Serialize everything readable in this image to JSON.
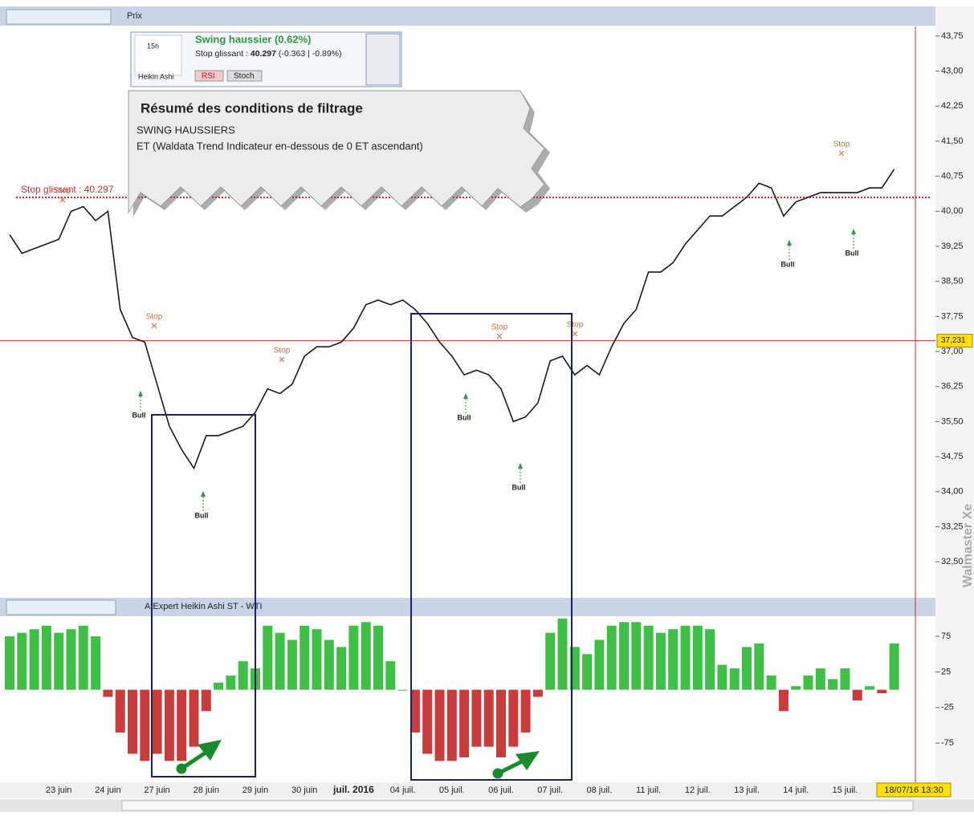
{
  "toolbar": {
    "title": "Prix"
  },
  "widget": {
    "signal": "Swing haussier (0.62%)",
    "stop_prefix": "Stop glissant : ",
    "stop_value": "40.297",
    "stop_change": " (-0.363 | -0.89%)",
    "timeframe": "15h",
    "style": "Heikin Ashi",
    "rsi": "RSI",
    "stoch": "Stoch"
  },
  "popup": {
    "title": "Résumé des conditions de filtrage",
    "line1": "SWING HAUSSIERS",
    "line2": "ET  (Waldata Trend Indicateur en-dessous de 0 ET ascendant)"
  },
  "annotations": {
    "stop": "Stop",
    "bull": "Bull"
  },
  "indicator_title": "AtExpert Heikin Ashi ST - WTI",
  "cursor_date": "18/07/16 13:30",
  "watermark": "Walmaster Xe",
  "chart_data": [
    {
      "type": "line",
      "color": "#1a1a1a",
      "categories": [
        null,
        null,
        null,
        null,
        "23 juin",
        null,
        null,
        null,
        "24 juin",
        null,
        null,
        null,
        "27 juin",
        null,
        null,
        null,
        "28 juin",
        null,
        null,
        null,
        "29 juin",
        null,
        null,
        null,
        "30 juin",
        null,
        null,
        null,
        "juil. 2016",
        null,
        null,
        null,
        "04 juil.",
        null,
        null,
        null,
        "05 juil.",
        null,
        null,
        null,
        "06 juil.",
        null,
        null,
        null,
        "07 juil.",
        null,
        null,
        null,
        "08 juil.",
        null,
        null,
        null,
        "11 juil.",
        null,
        null,
        null,
        "12 juil.",
        null,
        null,
        null,
        "13 juil.",
        null,
        null,
        null,
        "14 juil.",
        null,
        null,
        null,
        "15 juil.",
        null,
        null,
        null,
        null
      ],
      "values": [
        39.5,
        39.1,
        39.2,
        39.3,
        39.4,
        40.0,
        40.1,
        39.8,
        40.0,
        37.9,
        37.3,
        37.2,
        36.3,
        35.4,
        34.9,
        34.5,
        35.2,
        35.2,
        35.3,
        35.4,
        35.7,
        36.2,
        36.1,
        36.3,
        36.9,
        37.1,
        37.1,
        37.2,
        37.5,
        38.0,
        38.1,
        38.0,
        38.1,
        37.9,
        37.6,
        37.2,
        36.9,
        36.5,
        36.6,
        36.5,
        36.2,
        35.5,
        35.6,
        35.9,
        36.8,
        36.9,
        36.5,
        36.7,
        36.5,
        37.1,
        37.6,
        37.9,
        38.7,
        38.7,
        38.9,
        39.3,
        39.6,
        39.9,
        39.9,
        40.1,
        40.3,
        40.6,
        40.5,
        39.9,
        40.2,
        40.3,
        40.4,
        40.4,
        40.4,
        40.4,
        40.5,
        40.5,
        40.9
      ],
      "ylim": [
        31.73,
        43.92
      ],
      "yticks": [
        {
          "value": 43.75,
          "label": "43,75"
        },
        {
          "value": 43.0,
          "label": "43,00"
        },
        {
          "value": 42.25,
          "label": "42,25"
        },
        {
          "value": 41.5,
          "label": "41,50"
        },
        {
          "value": 40.75,
          "label": "40,75"
        },
        {
          "value": 40.0,
          "label": "40,00"
        },
        {
          "value": 39.25,
          "label": "39,25"
        },
        {
          "value": 38.5,
          "label": "38,50"
        },
        {
          "value": 37.75,
          "label": "37,75"
        },
        {
          "value": 37.0,
          "label": "37,00"
        },
        {
          "value": 36.25,
          "label": "36,25"
        },
        {
          "value": 35.5,
          "label": "35,50"
        },
        {
          "value": 34.75,
          "label": "34,75"
        },
        {
          "value": 34.0,
          "label": "34,00"
        },
        {
          "value": 33.25,
          "label": "33,25"
        },
        {
          "value": 32.5,
          "label": "32,50"
        }
      ],
      "current_price": {
        "value": 37.231,
        "label": "37,231",
        "color": "#d03030"
      },
      "trailing_stop": {
        "value": 40.297,
        "label": "Stop glissant : 40.297",
        "color": "#d03030"
      }
    },
    {
      "type": "bar",
      "pos_color": "#3fbf45",
      "neg_color": "#c83c3c",
      "values": [
        75,
        80,
        85,
        90,
        80,
        85,
        90,
        75,
        -10,
        -60,
        -90,
        -100,
        -90,
        -100,
        -100,
        -80,
        -30,
        10,
        20,
        40,
        30,
        90,
        80,
        70,
        90,
        85,
        70,
        60,
        90,
        95,
        90,
        40,
        0,
        -60,
        -90,
        -100,
        -100,
        -95,
        -80,
        -80,
        -95,
        -80,
        -60,
        -10,
        80,
        100,
        60,
        50,
        70,
        90,
        95,
        95,
        90,
        80,
        85,
        90,
        90,
        85,
        35,
        30,
        60,
        65,
        20,
        -30,
        5,
        20,
        30,
        15,
        30,
        -15,
        5,
        -5,
        65
      ],
      "ylim": [
        -130,
        101
      ],
      "yticks": [
        75,
        25,
        -25,
        -75
      ]
    }
  ]
}
